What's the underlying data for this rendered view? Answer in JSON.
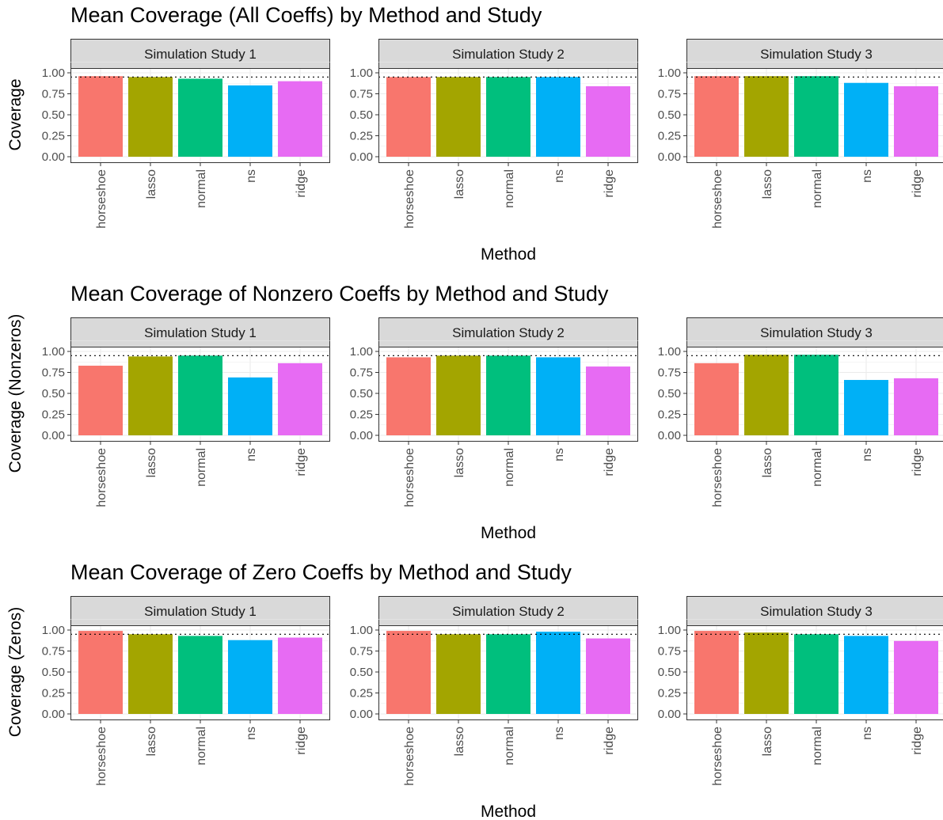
{
  "x_title": "Method",
  "y_ticks": [
    "0.00",
    "0.25",
    "0.50",
    "0.75",
    "1.00"
  ],
  "colors": {
    "horseshoe": "#F8766D",
    "lasso": "#A3A500",
    "normal": "#00BF7D",
    "ns": "#00B0F6",
    "ridge": "#E76BF3",
    "strip_bg": "#d9d9d9",
    "panel_border": "#333333",
    "grid": "#ebebeb"
  },
  "chart_data": [
    {
      "type": "bar",
      "title": "Mean Coverage (All Coeffs) by Method and Study",
      "ylabel": "Coverage",
      "xlabel": "Method",
      "ylim": [
        0,
        1.25
      ],
      "reference_line": 0.95,
      "categories": [
        "horseshoe",
        "lasso",
        "normal",
        "ns",
        "ridge"
      ],
      "panels": [
        {
          "label": "Simulation Study 1",
          "values": [
            0.96,
            0.95,
            0.93,
            0.85,
            0.9
          ]
        },
        {
          "label": "Simulation Study 2",
          "values": [
            0.95,
            0.95,
            0.95,
            0.95,
            0.84
          ]
        },
        {
          "label": "Simulation Study 3",
          "values": [
            0.96,
            0.96,
            0.96,
            0.88,
            0.84
          ]
        }
      ]
    },
    {
      "type": "bar",
      "title": "Mean Coverage of Nonzero Coeffs by Method and Study",
      "ylabel": "Coverage (Nonzeros)",
      "xlabel": "Method",
      "ylim": [
        0,
        1.25
      ],
      "reference_line": 0.95,
      "categories": [
        "horseshoe",
        "lasso",
        "normal",
        "ns",
        "ridge"
      ],
      "panels": [
        {
          "label": "Simulation Study 1",
          "values": [
            0.83,
            0.94,
            0.95,
            0.69,
            0.86
          ]
        },
        {
          "label": "Simulation Study 2",
          "values": [
            0.93,
            0.95,
            0.95,
            0.93,
            0.82
          ]
        },
        {
          "label": "Simulation Study 3",
          "values": [
            0.86,
            0.96,
            0.96,
            0.66,
            0.68
          ]
        }
      ]
    },
    {
      "type": "bar",
      "title": "Mean Coverage of Zero Coeffs by Method and Study",
      "ylabel": "Coverage (Zeros)",
      "xlabel": "Method",
      "ylim": [
        0,
        1.25
      ],
      "reference_line": 0.95,
      "categories": [
        "horseshoe",
        "lasso",
        "normal",
        "ns",
        "ridge"
      ],
      "panels": [
        {
          "label": "Simulation Study 1",
          "values": [
            0.99,
            0.95,
            0.93,
            0.88,
            0.91
          ]
        },
        {
          "label": "Simulation Study 2",
          "values": [
            0.99,
            0.95,
            0.95,
            0.98,
            0.9
          ]
        },
        {
          "label": "Simulation Study 3",
          "values": [
            0.99,
            0.97,
            0.95,
            0.93,
            0.87
          ]
        }
      ]
    }
  ]
}
